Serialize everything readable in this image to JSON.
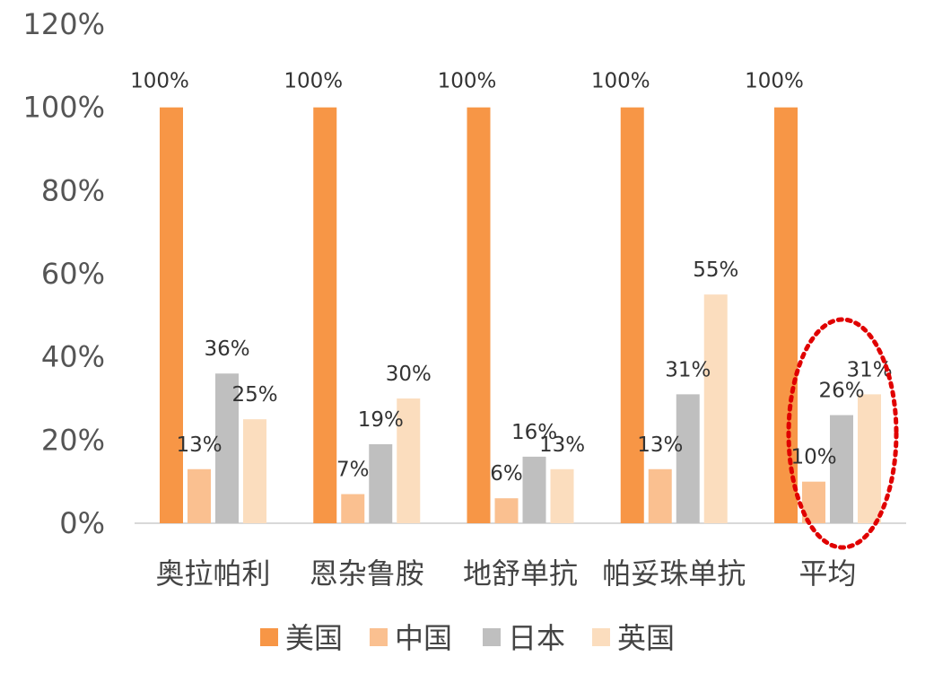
{
  "chart_data": {
    "type": "bar",
    "title": "",
    "xlabel": "",
    "ylabel": "",
    "categories": [
      "奥拉帕利",
      "恩杂鲁胺",
      "地舒单抗",
      "帕妥珠单抗",
      "平均"
    ],
    "ylim": [
      0,
      1.2
    ],
    "yticks": [
      "0%",
      "20%",
      "40%",
      "60%",
      "80%",
      "100%",
      "120%"
    ],
    "grid": false,
    "legend_position": "bottom",
    "series": [
      {
        "name": "美国",
        "color": "#F79646",
        "values": [
          1.0,
          1.0,
          1.0,
          1.0,
          1.0
        ],
        "labels": [
          "100%",
          "100%",
          "100%",
          "100%",
          "100%"
        ]
      },
      {
        "name": "中国",
        "color": "#FAC090",
        "values": [
          0.13,
          0.07,
          0.06,
          0.13,
          0.1
        ],
        "labels": [
          "13%",
          "7%",
          "6%",
          "13%",
          "10%"
        ]
      },
      {
        "name": "日本",
        "color": "#BFBFBF",
        "values": [
          0.36,
          0.19,
          0.16,
          0.31,
          0.26
        ],
        "labels": [
          "36%",
          "19%",
          "16%",
          "31%",
          "26%"
        ]
      },
      {
        "name": "英国",
        "color": "#FBDDBE",
        "values": [
          0.25,
          0.3,
          0.13,
          0.55,
          0.31
        ],
        "labels": [
          "25%",
          "30%",
          "13%",
          "55%",
          "31%"
        ]
      }
    ],
    "annotations": [
      {
        "type": "dotted-ellipse",
        "target_category": "平均",
        "color": "#E00000"
      }
    ]
  }
}
